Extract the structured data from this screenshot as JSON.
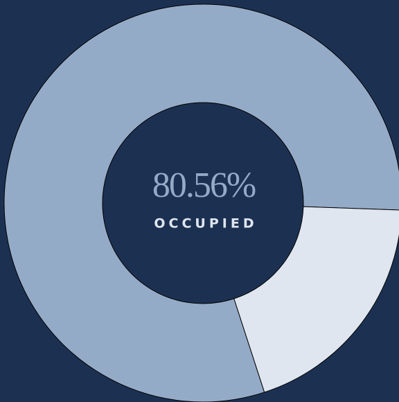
{
  "chart_data": {
    "type": "donut",
    "categories": [
      "OCCUPIED",
      null
    ],
    "values": [
      80.56,
      19.44
    ],
    "value_labels": [
      "80.56%",
      null
    ],
    "colors": [
      "#94abc8",
      "#dfe6ef"
    ]
  }
}
